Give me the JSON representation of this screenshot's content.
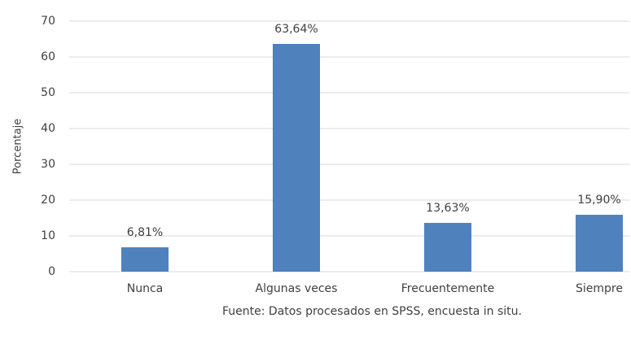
{
  "chart_data": {
    "type": "bar",
    "y_label": "Porcentaje",
    "footnote": "Fuente: Datos procesados en SPSS, encuesta in situ.",
    "categories": [
      "Nunca",
      "Algunas veces",
      "Frecuentemente",
      "Siempre"
    ],
    "values": [
      6.81,
      63.64,
      13.63,
      15.9
    ],
    "value_labels": [
      "6,81%",
      "63,64%",
      "13,63%",
      "15,90%"
    ],
    "color": "#4f81bd",
    "ylim": [
      0,
      70
    ],
    "yticks": [
      0,
      10,
      20,
      30,
      40,
      50,
      60,
      70
    ],
    "grid": true
  }
}
